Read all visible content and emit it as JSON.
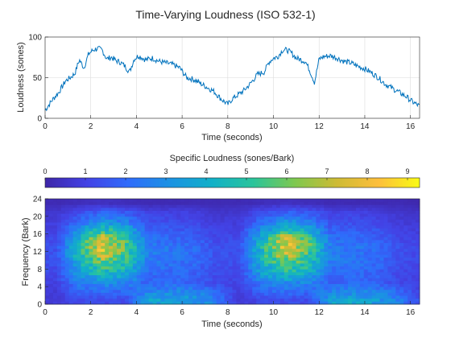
{
  "figure": {
    "title": "Time-Varying Loudness (ISO 532-1)"
  },
  "colors": {
    "line": "#0072bd",
    "axis": "#262626",
    "grid": "#dcdcdc",
    "colormap": [
      "#3e26a8",
      "#4342e5",
      "#2f6cfb",
      "#1b92e3",
      "#11b0c8",
      "#2ac49b",
      "#7ec84f",
      "#cdbb35",
      "#fdbe3c",
      "#f9fb15"
    ]
  },
  "chart_data": [
    {
      "type": "line",
      "title": "",
      "xlabel": "Time (seconds)",
      "ylabel": "Loudness (sones)",
      "xlim": [
        0,
        16.4
      ],
      "ylim": [
        0,
        100
      ],
      "xticks": [
        "0",
        "2",
        "4",
        "6",
        "8",
        "10",
        "12",
        "14",
        "16"
      ],
      "yticks": [
        "0",
        "50",
        "100"
      ],
      "grid": true,
      "series": [
        {
          "x": [
            0,
            0.3,
            0.6,
            0.9,
            1.1,
            1.3,
            1.5,
            1.7,
            1.9,
            2.1,
            2.3,
            2.5,
            2.7,
            2.9,
            3.1,
            3.3,
            3.5,
            3.7,
            3.9,
            4.1,
            4.4,
            4.7,
            5.0,
            5.3,
            5.6,
            5.9,
            6.2,
            6.5,
            6.8,
            7.1,
            7.4,
            7.7,
            8.0,
            8.2,
            8.4,
            8.7,
            9.0,
            9.3,
            9.6,
            9.8,
            10.0,
            10.2,
            10.4,
            10.6,
            10.8,
            11.0,
            11.2,
            11.4,
            11.6,
            11.8,
            12.0,
            12.2,
            12.5,
            12.8,
            13.1,
            13.4,
            13.7,
            14.0,
            14.3,
            14.6,
            14.9,
            15.2,
            15.5,
            15.8,
            16.1,
            16.4
          ],
          "y": [
            10,
            22,
            32,
            46,
            50,
            55,
            72,
            62,
            79,
            84,
            86,
            84,
            73,
            75,
            71,
            69,
            64,
            57,
            73,
            77,
            72,
            74,
            70,
            68,
            66,
            62,
            50,
            48,
            43,
            38,
            33,
            24,
            17,
            24,
            28,
            34,
            43,
            54,
            57,
            69,
            74,
            76,
            84,
            84,
            80,
            74,
            72,
            70,
            58,
            44,
            73,
            76,
            77,
            74,
            70,
            68,
            64,
            61,
            56,
            50,
            42,
            37,
            32,
            27,
            20,
            15
          ]
        }
      ]
    },
    {
      "type": "heatmap",
      "title": "",
      "xlabel": "Time (seconds)",
      "ylabel": "Frequency (Bark)",
      "xlim": [
        0,
        16.4
      ],
      "ylim": [
        0,
        24
      ],
      "xticks": [
        "0",
        "2",
        "4",
        "6",
        "8",
        "10",
        "12",
        "14",
        "16"
      ],
      "yticks": [
        "0",
        "4",
        "8",
        "12",
        "16",
        "20",
        "24"
      ],
      "colorbar": {
        "label": "Specific Loudness (sones/Bark)",
        "location": "top",
        "ticks": [
          "0",
          "1",
          "2",
          "3",
          "4",
          "5",
          "6",
          "7",
          "8",
          "9"
        ],
        "range": [
          0,
          9.3
        ]
      },
      "time_centers": [
        0.5,
        1.5,
        2.5,
        3.5,
        4.5,
        5.5,
        6.5,
        7.5,
        8.5,
        9.5,
        10.5,
        11.5,
        12.5,
        13.5,
        14.5,
        15.5,
        16.2
      ],
      "bark_centers": [
        1,
        3,
        5,
        7,
        9,
        11,
        13,
        15,
        17,
        19,
        21,
        23
      ],
      "values": [
        [
          0.8,
          1.2,
          1.3,
          1.2,
          3.5,
          3.8,
          3.4,
          2.5,
          0.8,
          1.2,
          1.3,
          1.2,
          3.5,
          3.8,
          3.4,
          2.5,
          1.5
        ],
        [
          0.8,
          2.0,
          2.2,
          2.0,
          2.6,
          2.8,
          2.6,
          2.0,
          0.8,
          2.0,
          2.2,
          2.0,
          2.6,
          2.8,
          2.6,
          2.0,
          1.2
        ],
        [
          1.0,
          2.5,
          3.0,
          2.8,
          1.8,
          2.0,
          1.8,
          1.2,
          1.0,
          2.5,
          3.0,
          2.8,
          1.8,
          2.0,
          1.8,
          1.2,
          1.0
        ],
        [
          1.2,
          3.5,
          4.5,
          4.0,
          2.0,
          2.0,
          1.8,
          1.2,
          1.2,
          3.5,
          4.5,
          4.0,
          2.0,
          2.0,
          1.8,
          1.2,
          1.0
        ],
        [
          1.3,
          4.0,
          5.5,
          4.8,
          2.3,
          2.2,
          2.0,
          1.3,
          1.3,
          4.0,
          5.5,
          4.8,
          2.3,
          2.2,
          2.0,
          1.3,
          1.1
        ],
        [
          1.4,
          4.5,
          6.8,
          5.2,
          2.6,
          2.3,
          2.1,
          1.4,
          1.4,
          4.5,
          6.8,
          5.2,
          2.6,
          2.3,
          2.1,
          1.4,
          1.2
        ],
        [
          1.4,
          4.6,
          7.8,
          5.8,
          2.6,
          2.3,
          2.1,
          1.4,
          1.4,
          4.6,
          7.8,
          5.8,
          2.6,
          2.3,
          2.1,
          1.4,
          1.2
        ],
        [
          1.2,
          4.0,
          7.2,
          5.5,
          2.2,
          2.0,
          1.8,
          1.2,
          1.2,
          4.0,
          7.2,
          5.5,
          2.2,
          2.0,
          1.8,
          1.2,
          1.0
        ],
        [
          1.0,
          3.0,
          5.0,
          4.0,
          1.8,
          1.7,
          1.5,
          1.0,
          1.0,
          3.0,
          5.0,
          4.0,
          1.8,
          1.7,
          1.5,
          1.0,
          0.9
        ],
        [
          0.8,
          2.0,
          3.0,
          2.6,
          1.3,
          1.3,
          1.1,
          0.8,
          0.8,
          2.0,
          3.0,
          2.6,
          1.3,
          1.3,
          1.1,
          0.8,
          0.7
        ],
        [
          0.6,
          1.3,
          1.8,
          1.6,
          1.0,
          1.0,
          0.9,
          0.6,
          0.6,
          1.3,
          1.8,
          1.6,
          1.0,
          1.0,
          0.9,
          0.6,
          0.5
        ],
        [
          0.2,
          0.3,
          0.4,
          0.3,
          0.2,
          0.2,
          0.2,
          0.2,
          0.2,
          0.3,
          0.4,
          0.3,
          0.2,
          0.2,
          0.2,
          0.2,
          0.1
        ]
      ]
    }
  ]
}
